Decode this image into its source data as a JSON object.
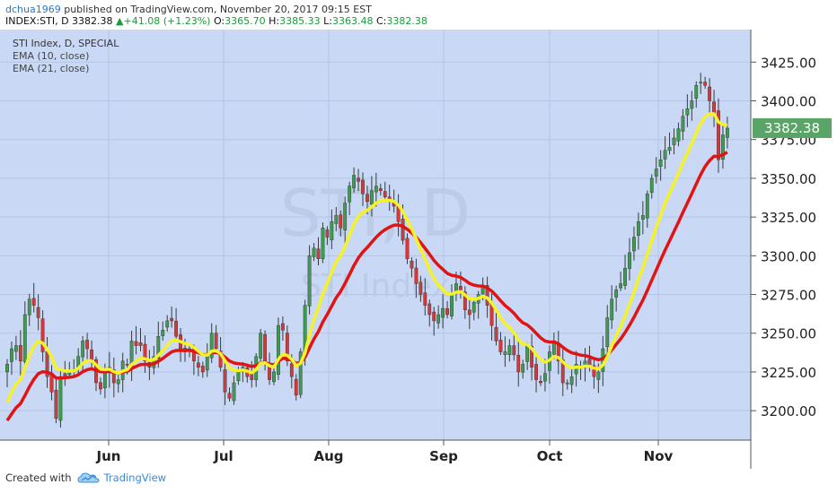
{
  "header": {
    "user": "dchua1969",
    "published": " published on TradingView.com, November 20, 2017 09:15 EST",
    "symbol": "INDEX:STI, D",
    "last": "3382.38",
    "change": "+41.08 (+1.23%)",
    "o_label": "O:",
    "o_value": "3365.70",
    "h_label": "H:",
    "h_value": "3385.33",
    "l_label": "L:",
    "l_value": "3363.48",
    "c_label": "C:",
    "c_value": "3382.38"
  },
  "legend": {
    "title": "STI Index, D, SPECIAL",
    "ema10": "EMA (10, close)",
    "ema21": "EMA (21, close)"
  },
  "watermark": {
    "symbol": "STI, D",
    "name": "STI Index"
  },
  "price_label": "3382.38",
  "footer": {
    "created": "Created with",
    "brand": "TradingView"
  },
  "colors": {
    "background": "#c9d9f5",
    "grid": "#b3c5e6",
    "up": "#3f9b4f",
    "down": "#d13a3a",
    "ema10": "#f5f22a",
    "ema21": "#e01414",
    "price_label_bg": "#5aa467"
  },
  "chart_data": {
    "type": "candlestick",
    "series": [
      {
        "name": "EMA (10, close)",
        "color": "#f5f22a"
      },
      {
        "name": "EMA (21, close)",
        "color": "#e01414"
      }
    ],
    "x_ticks": [
      "Jun",
      "Jul",
      "Aug",
      "Sep",
      "Oct",
      "Nov"
    ],
    "y_ticks": [
      "3425.00",
      "3400.00",
      "3375.00",
      "3350.00",
      "3325.00",
      "3300.00",
      "3275.00",
      "3250.00",
      "3225.00",
      "3200.00"
    ],
    "ylim": [
      3181,
      3446
    ],
    "closes": [
      3230,
      3240,
      3242,
      3232,
      3262,
      3272,
      3268,
      3260,
      3238,
      3222,
      3212,
      3195,
      3222,
      3222,
      3225,
      3226,
      3235,
      3245,
      3240,
      3232,
      3218,
      3214,
      3225,
      3228,
      3218,
      3220,
      3232,
      3230,
      3245,
      3242,
      3242,
      3232,
      3228,
      3235,
      3248,
      3252,
      3258,
      3258,
      3248,
      3240,
      3238,
      3240,
      3232,
      3228,
      3225,
      3235,
      3250,
      3240,
      3228,
      3212,
      3208,
      3218,
      3225,
      3228,
      3222,
      3220,
      3235,
      3250,
      3232,
      3220,
      3225,
      3255,
      3252,
      3232,
      3222,
      3210,
      3238,
      3268,
      3300,
      3305,
      3298,
      3318,
      3312,
      3322,
      3326,
      3318,
      3334,
      3345,
      3352,
      3348,
      3340,
      3335,
      3342,
      3345,
      3342,
      3338,
      3335,
      3332,
      3322,
      3310,
      3298,
      3292,
      3282,
      3275,
      3268,
      3262,
      3258,
      3262,
      3266,
      3262,
      3275,
      3282,
      3278,
      3265,
      3262,
      3270,
      3275,
      3280,
      3268,
      3255,
      3245,
      3238,
      3238,
      3242,
      3236,
      3225,
      3230,
      3242,
      3228,
      3220,
      3218,
      3224,
      3238,
      3245,
      3232,
      3218,
      3218,
      3222,
      3230,
      3228,
      3232,
      3228,
      3222,
      3225,
      3240,
      3260,
      3272,
      3278,
      3282,
      3292,
      3302,
      3312,
      3322,
      3326,
      3340,
      3350,
      3356,
      3362,
      3368,
      3370,
      3376,
      3382,
      3390,
      3395,
      3400,
      3410,
      3412,
      3410,
      3400,
      3392,
      3362,
      3378,
      3382.38
    ]
  }
}
